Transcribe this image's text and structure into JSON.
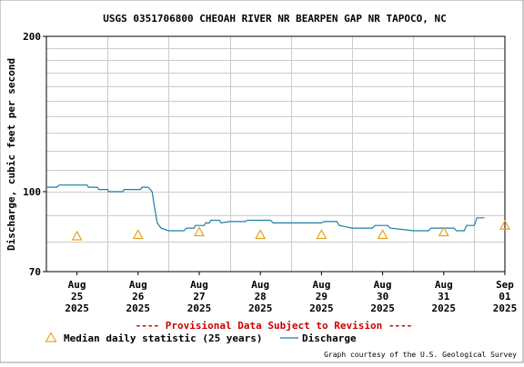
{
  "chart_data": {
    "type": "line",
    "title": "USGS 0351706800 CHEOAH RIVER NR BEARPEN GAP NR TAPOCO, NC",
    "ylabel": "Discharge, cubic feet per second",
    "xlabel": "",
    "y_scale": "log",
    "ylim": [
      70,
      200
    ],
    "y_ticks": [
      {
        "value": 70,
        "label": "70"
      },
      {
        "value": 100,
        "label": "100"
      },
      {
        "value": 200,
        "label": "200"
      }
    ],
    "x_range": [
      "2025-08-25T00:00",
      "2025-09-01T12:00"
    ],
    "x_ticks": [
      {
        "date": "2025-08-25T12:00",
        "lines": [
          "Aug",
          "25",
          "2025"
        ]
      },
      {
        "date": "2025-08-26T12:00",
        "lines": [
          "Aug",
          "26",
          "2025"
        ]
      },
      {
        "date": "2025-08-27T12:00",
        "lines": [
          "Aug",
          "27",
          "2025"
        ]
      },
      {
        "date": "2025-08-28T12:00",
        "lines": [
          "Aug",
          "28",
          "2025"
        ]
      },
      {
        "date": "2025-08-29T12:00",
        "lines": [
          "Aug",
          "29",
          "2025"
        ]
      },
      {
        "date": "2025-08-30T12:00",
        "lines": [
          "Aug",
          "30",
          "2025"
        ]
      },
      {
        "date": "2025-08-31T12:00",
        "lines": [
          "Aug",
          "31",
          "2025"
        ]
      },
      {
        "date": "2025-09-01T12:00",
        "lines": [
          "Sep",
          "01",
          "2025"
        ]
      }
    ],
    "grid": true,
    "series": [
      {
        "name": "Discharge",
        "type": "line",
        "color": "#1a7fa8",
        "points": [
          {
            "x": "2025-08-25T00:00",
            "y": 102
          },
          {
            "x": "2025-08-25T04:00",
            "y": 102
          },
          {
            "x": "2025-08-25T05:00",
            "y": 103
          },
          {
            "x": "2025-08-25T16:00",
            "y": 103
          },
          {
            "x": "2025-08-25T16:30",
            "y": 102
          },
          {
            "x": "2025-08-25T20:00",
            "y": 102
          },
          {
            "x": "2025-08-25T20:30",
            "y": 101
          },
          {
            "x": "2025-08-26T00:00",
            "y": 101
          },
          {
            "x": "2025-08-26T00:30",
            "y": 100
          },
          {
            "x": "2025-08-26T06:00",
            "y": 100
          },
          {
            "x": "2025-08-26T06:30",
            "y": 101
          },
          {
            "x": "2025-08-26T13:00",
            "y": 101
          },
          {
            "x": "2025-08-26T13:30",
            "y": 102
          },
          {
            "x": "2025-08-26T16:00",
            "y": 102
          },
          {
            "x": "2025-08-26T17:30",
            "y": 100
          },
          {
            "x": "2025-08-26T18:30",
            "y": 93
          },
          {
            "x": "2025-08-26T19:30",
            "y": 87
          },
          {
            "x": "2025-08-26T21:00",
            "y": 85
          },
          {
            "x": "2025-08-27T00:00",
            "y": 84
          },
          {
            "x": "2025-08-27T06:00",
            "y": 84
          },
          {
            "x": "2025-08-27T07:00",
            "y": 85
          },
          {
            "x": "2025-08-27T10:00",
            "y": 85
          },
          {
            "x": "2025-08-27T10:30",
            "y": 86
          },
          {
            "x": "2025-08-27T14:00",
            "y": 86
          },
          {
            "x": "2025-08-27T14:30",
            "y": 87
          },
          {
            "x": "2025-08-27T16:00",
            "y": 87
          },
          {
            "x": "2025-08-27T16:30",
            "y": 88
          },
          {
            "x": "2025-08-27T20:00",
            "y": 88
          },
          {
            "x": "2025-08-27T20:30",
            "y": 87
          },
          {
            "x": "2025-08-28T00:00",
            "y": 87.5
          },
          {
            "x": "2025-08-28T06:00",
            "y": 87.5
          },
          {
            "x": "2025-08-28T07:00",
            "y": 88
          },
          {
            "x": "2025-08-28T16:00",
            "y": 88
          },
          {
            "x": "2025-08-28T17:00",
            "y": 87
          },
          {
            "x": "2025-08-29T12:00",
            "y": 87
          },
          {
            "x": "2025-08-29T13:00",
            "y": 87.5
          },
          {
            "x": "2025-08-29T18:00",
            "y": 87.5
          },
          {
            "x": "2025-08-29T19:00",
            "y": 86
          },
          {
            "x": "2025-08-30T00:00",
            "y": 85
          },
          {
            "x": "2025-08-30T08:00",
            "y": 85
          },
          {
            "x": "2025-08-30T09:00",
            "y": 86
          },
          {
            "x": "2025-08-30T14:00",
            "y": 86
          },
          {
            "x": "2025-08-30T15:00",
            "y": 85
          },
          {
            "x": "2025-08-31T00:00",
            "y": 84
          },
          {
            "x": "2025-08-31T06:00",
            "y": 84
          },
          {
            "x": "2025-08-31T07:00",
            "y": 85
          },
          {
            "x": "2025-08-31T16:00",
            "y": 85
          },
          {
            "x": "2025-08-31T17:00",
            "y": 84
          },
          {
            "x": "2025-08-31T20:00",
            "y": 84
          },
          {
            "x": "2025-08-31T21:00",
            "y": 86
          },
          {
            "x": "2025-09-01T00:00",
            "y": 86
          },
          {
            "x": "2025-09-01T01:00",
            "y": 89
          },
          {
            "x": "2025-09-01T04:00",
            "y": 89
          }
        ]
      },
      {
        "name": "Median daily statistic (25 years)",
        "type": "scatter",
        "marker": "triangle",
        "color": "#e8a317",
        "points": [
          {
            "x": "2025-08-25T12:00",
            "y": 82
          },
          {
            "x": "2025-08-26T12:00",
            "y": 82.5
          },
          {
            "x": "2025-08-27T12:00",
            "y": 83.5
          },
          {
            "x": "2025-08-28T12:00",
            "y": 82.5
          },
          {
            "x": "2025-08-29T12:00",
            "y": 82.5
          },
          {
            "x": "2025-08-30T12:00",
            "y": 82.5
          },
          {
            "x": "2025-08-31T12:00",
            "y": 83.5
          },
          {
            "x": "2025-09-01T12:00",
            "y": 86
          }
        ]
      }
    ],
    "provisional_note": "---- Provisional Data Subject to Revision ----",
    "provisional_color": "#cc0000",
    "credit": "Graph courtesy of the U.S. Geological Survey",
    "legend": [
      {
        "label": "Median daily statistic (25 years)",
        "marker": "triangle",
        "color": "#e8a317"
      },
      {
        "label": "Discharge",
        "marker": "line",
        "color": "#1a7fa8"
      }
    ],
    "legend_position": "bottom-left"
  }
}
